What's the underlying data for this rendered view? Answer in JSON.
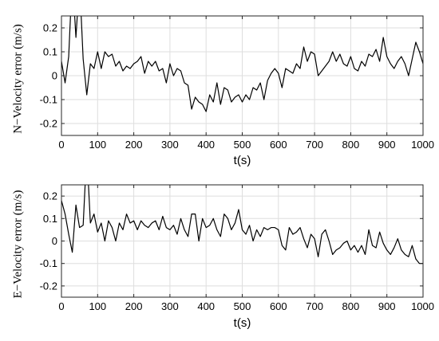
{
  "chart_data": [
    {
      "type": "line",
      "xlabel": "t(s)",
      "ylabel": "N−Velocity error (m/s)",
      "xlim": [
        0,
        1000
      ],
      "ylim": [
        -0.25,
        0.25
      ],
      "xticks": [
        0,
        100,
        200,
        300,
        400,
        500,
        600,
        700,
        800,
        900,
        1000
      ],
      "yticks": [
        -0.2,
        -0.1,
        0,
        0.1,
        0.2
      ],
      "xtick_labels": [
        "0",
        "100",
        "200",
        "300",
        "400",
        "500",
        "600",
        "700",
        "800",
        "900",
        "1000"
      ],
      "ytick_labels": [
        "-0.2",
        "-0.1",
        "0",
        "0.1",
        "0.2"
      ],
      "grid": true,
      "series": [
        {
          "color": "#000000",
          "x": [
            0,
            10,
            20,
            30,
            40,
            50,
            60,
            70,
            80,
            90,
            100,
            110,
            120,
            130,
            140,
            150,
            160,
            170,
            180,
            190,
            200,
            210,
            220,
            230,
            240,
            250,
            260,
            270,
            280,
            290,
            300,
            310,
            320,
            330,
            340,
            350,
            360,
            370,
            380,
            390,
            400,
            410,
            420,
            430,
            440,
            450,
            460,
            470,
            480,
            490,
            500,
            510,
            520,
            530,
            540,
            550,
            560,
            570,
            580,
            590,
            600,
            610,
            620,
            630,
            640,
            650,
            660,
            670,
            680,
            690,
            700,
            710,
            720,
            730,
            740,
            750,
            760,
            770,
            780,
            790,
            800,
            810,
            820,
            830,
            840,
            850,
            860,
            870,
            880,
            890,
            900,
            910,
            920,
            930,
            940,
            950,
            960,
            970,
            980,
            990,
            1000
          ],
          "y": [
            0.06,
            -0.03,
            0.08,
            0.42,
            0.16,
            0.4,
            0.07,
            -0.08,
            0.05,
            0.03,
            0.1,
            0.03,
            0.1,
            0.08,
            0.09,
            0.04,
            0.06,
            0.02,
            0.04,
            0.03,
            0.05,
            0.06,
            0.08,
            0.01,
            0.06,
            0.04,
            0.06,
            0.02,
            0.03,
            -0.03,
            0.05,
            0.0,
            0.03,
            0.02,
            -0.03,
            -0.04,
            -0.14,
            -0.09,
            -0.11,
            -0.12,
            -0.15,
            -0.08,
            -0.11,
            -0.03,
            -0.12,
            -0.05,
            -0.06,
            -0.11,
            -0.09,
            -0.08,
            -0.11,
            -0.08,
            -0.1,
            -0.05,
            -0.06,
            -0.03,
            -0.1,
            -0.02,
            0.01,
            0.03,
            0.01,
            -0.05,
            0.03,
            0.02,
            0.01,
            0.05,
            0.03,
            0.12,
            0.06,
            0.1,
            0.09,
            0.0,
            0.02,
            0.04,
            0.06,
            0.1,
            0.06,
            0.09,
            0.05,
            0.04,
            0.08,
            0.03,
            0.02,
            0.06,
            0.04,
            0.09,
            0.08,
            0.11,
            0.06,
            0.16,
            0.08,
            0.05,
            0.03,
            0.06,
            0.08,
            0.05,
            0.0,
            0.07,
            0.14,
            0.1,
            0.05
          ]
        }
      ]
    },
    {
      "type": "line",
      "xlabel": "t(s)",
      "ylabel": "E−Velocity error (m/s)",
      "xlim": [
        0,
        1000
      ],
      "ylim": [
        -0.25,
        0.25
      ],
      "xticks": [
        0,
        100,
        200,
        300,
        400,
        500,
        600,
        700,
        800,
        900,
        1000
      ],
      "yticks": [
        -0.2,
        -0.1,
        0,
        0.1,
        0.2
      ],
      "xtick_labels": [
        "0",
        "100",
        "200",
        "300",
        "400",
        "500",
        "600",
        "700",
        "800",
        "900",
        "1000"
      ],
      "ytick_labels": [
        "-0.2",
        "-0.1",
        "0",
        "0.1",
        "0.2"
      ],
      "grid": true,
      "series": [
        {
          "color": "#000000",
          "x": [
            0,
            10,
            20,
            30,
            40,
            50,
            60,
            70,
            80,
            90,
            100,
            110,
            120,
            130,
            140,
            150,
            160,
            170,
            180,
            190,
            200,
            210,
            220,
            230,
            240,
            250,
            260,
            270,
            280,
            290,
            300,
            310,
            320,
            330,
            340,
            350,
            360,
            370,
            380,
            390,
            400,
            410,
            420,
            430,
            440,
            450,
            460,
            470,
            480,
            490,
            500,
            510,
            520,
            530,
            540,
            550,
            560,
            570,
            580,
            590,
            600,
            610,
            620,
            630,
            640,
            650,
            660,
            670,
            680,
            690,
            700,
            710,
            720,
            730,
            740,
            750,
            760,
            770,
            780,
            790,
            800,
            810,
            820,
            830,
            840,
            850,
            860,
            870,
            880,
            890,
            900,
            910,
            920,
            930,
            940,
            950,
            960,
            970,
            980,
            990,
            1000
          ],
          "y": [
            0.18,
            0.12,
            0.03,
            -0.05,
            0.16,
            0.06,
            0.07,
            0.4,
            0.08,
            0.12,
            0.04,
            0.08,
            0.0,
            0.09,
            0.06,
            0.0,
            0.08,
            0.05,
            0.12,
            0.08,
            0.09,
            0.05,
            0.09,
            0.07,
            0.06,
            0.08,
            0.09,
            0.05,
            0.11,
            0.06,
            0.05,
            0.07,
            0.03,
            0.1,
            0.05,
            0.02,
            0.12,
            0.12,
            0.0,
            0.1,
            0.06,
            0.07,
            0.1,
            0.05,
            0.02,
            0.12,
            0.1,
            0.05,
            0.08,
            0.14,
            0.05,
            0.03,
            0.07,
            0.0,
            0.05,
            0.02,
            0.06,
            0.05,
            0.06,
            0.06,
            0.05,
            -0.02,
            -0.04,
            0.06,
            0.03,
            0.04,
            0.06,
            0.01,
            -0.03,
            0.03,
            0.01,
            -0.07,
            0.03,
            0.05,
            0.0,
            -0.06,
            -0.04,
            -0.03,
            -0.01,
            0.0,
            -0.04,
            -0.02,
            -0.05,
            -0.02,
            -0.06,
            0.05,
            -0.02,
            -0.03,
            0.04,
            -0.01,
            -0.04,
            -0.06,
            -0.03,
            0.01,
            -0.04,
            -0.06,
            -0.07,
            -0.02,
            -0.08,
            -0.1,
            -0.1
          ]
        }
      ]
    }
  ]
}
